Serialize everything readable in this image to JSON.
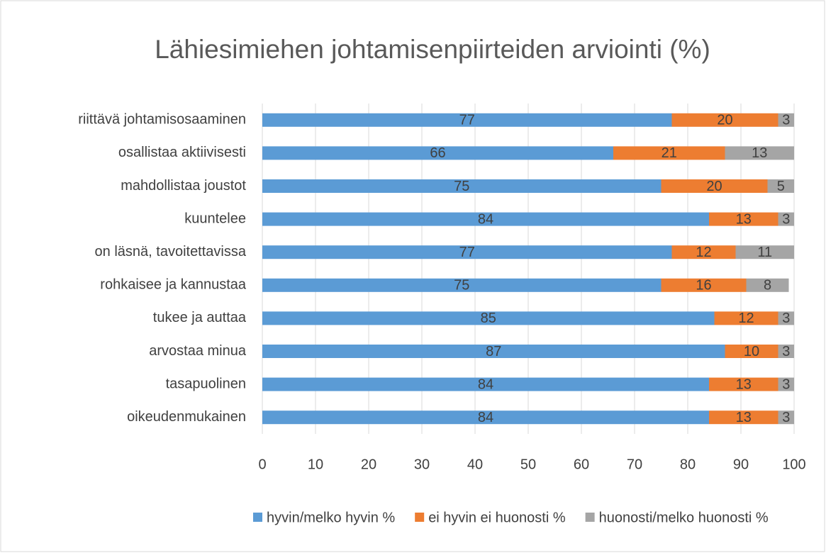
{
  "chart_data": {
    "type": "bar",
    "orientation": "horizontal",
    "stacked": true,
    "title": "Lähiesimiehen johtamisenpiirteiden arviointi (%)",
    "categories": [
      "riittävä johtamisosaaminen",
      "osallistaa aktiivisesti",
      "mahdollistaa joustot",
      "kuuntelee",
      "on läsnä, tavoitettavissa",
      "rohkaisee ja kannustaa",
      "tukee ja auttaa",
      "arvostaa minua",
      "tasapuolinen",
      "oikeudenmukainen"
    ],
    "series": [
      {
        "name": "hyvin/melko hyvin %",
        "color": "#5b9bd5",
        "values": [
          77,
          66,
          75,
          84,
          77,
          75,
          85,
          87,
          84,
          84
        ]
      },
      {
        "name": "ei hyvin ei huonosti %",
        "color": "#ed7d31",
        "values": [
          20,
          21,
          20,
          13,
          12,
          16,
          12,
          10,
          13,
          13
        ]
      },
      {
        "name": "huonosti/melko huonosti %",
        "color": "#a5a5a5",
        "values": [
          3,
          13,
          5,
          3,
          11,
          8,
          3,
          3,
          3,
          3
        ]
      }
    ],
    "xlim": [
      0,
      100
    ],
    "xticks": [
      0,
      10,
      20,
      30,
      40,
      50,
      60,
      70,
      80,
      90,
      100
    ],
    "grid": true,
    "legend": "bottom",
    "data_labels": true
  }
}
